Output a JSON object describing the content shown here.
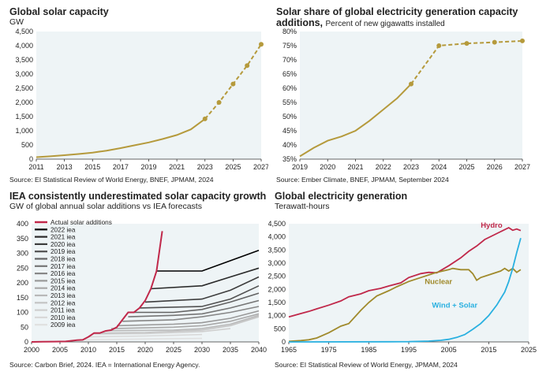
{
  "chart_data": [
    {
      "type": "line",
      "title": "Global solar capacity",
      "subtitle": "GW",
      "source": "Source: EI Statistical Review of World Energy, BNEF, JPMAM, 2024",
      "xlim": [
        2011,
        2027
      ],
      "ylim": [
        0,
        4500
      ],
      "x_ticks": [
        "2011",
        "2013",
        "2015",
        "2017",
        "2019",
        "2021",
        "2023",
        "2025",
        "2027"
      ],
      "y_ticks": [
        "0",
        "500",
        "1,000",
        "1,500",
        "2,000",
        "2,500",
        "3,000",
        "3,500",
        "4,000",
        "4,500"
      ],
      "series": [
        {
          "style": "solid",
          "color": "#b59a3c",
          "x": [
            2011,
            2012,
            2013,
            2014,
            2015,
            2016,
            2017,
            2018,
            2019,
            2020,
            2021,
            2022,
            2023
          ],
          "y": [
            70,
            100,
            140,
            180,
            230,
            300,
            390,
            490,
            590,
            710,
            850,
            1050,
            1420
          ]
        },
        {
          "style": "dashed-markers",
          "color": "#b59a3c",
          "x": [
            2023,
            2024,
            2025,
            2026,
            2027
          ],
          "y": [
            1420,
            2000,
            2650,
            3300,
            4050
          ]
        }
      ],
      "grid": false
    },
    {
      "type": "line",
      "title": "Solar share of global electricity generation capacity",
      "title2": "additions,",
      "subtitle": "Percent of new gigawatts installed",
      "source": "Source: Ember Climate, BNEF, JPMAM, September 2024",
      "xlim": [
        2019,
        2027
      ],
      "ylim": [
        35,
        80
      ],
      "x_ticks": [
        "2019",
        "2020",
        "2021",
        "2022",
        "2023",
        "2024",
        "2025",
        "2026",
        "2027"
      ],
      "y_ticks": [
        "35%",
        "40%",
        "45%",
        "50%",
        "55%",
        "60%",
        "65%",
        "70%",
        "75%",
        "80%"
      ],
      "series": [
        {
          "style": "solid",
          "color": "#b59a3c",
          "x": [
            2019,
            2019.5,
            2020,
            2020.5,
            2021,
            2021.5,
            2022,
            2022.5,
            2023
          ],
          "y": [
            36,
            39,
            41.5,
            43,
            45,
            48.5,
            52.5,
            56.5,
            61.5
          ]
        },
        {
          "style": "dashed-markers",
          "color": "#b59a3c",
          "x": [
            2023,
            2024,
            2025,
            2026,
            2027
          ],
          "y": [
            61.5,
            75,
            75.8,
            76.2,
            76.7
          ]
        }
      ],
      "grid": false
    },
    {
      "type": "line",
      "title": "IEA consistently underestimated solar capacity growth",
      "subtitle": "GW of global annual solar additions vs IEA forecasts",
      "source": "Source: Carbon Brief, 2024. IEA = International Energy Agency.",
      "xlim": [
        2000,
        2040
      ],
      "ylim": [
        0,
        400
      ],
      "x_ticks": [
        "2000",
        "2005",
        "2010",
        "2015",
        "2020",
        "2025",
        "2030",
        "2035",
        "2040"
      ],
      "y_ticks": [
        "0",
        "50",
        "100",
        "150",
        "200",
        "250",
        "300",
        "350",
        "400"
      ],
      "legend": [
        {
          "name": "Actual solar additions",
          "color": "#c0284a"
        },
        {
          "name": "2022 iea",
          "color": "#000000"
        },
        {
          "name": "2021 iea",
          "color": "#2a2a2a"
        },
        {
          "name": "2020 iea",
          "color": "#3d3d3d"
        },
        {
          "name": "2019 iea",
          "color": "#515151"
        },
        {
          "name": "2018 iea",
          "color": "#636363"
        },
        {
          "name": "2017 iea",
          "color": "#757575"
        },
        {
          "name": "2016 iea",
          "color": "#878787"
        },
        {
          "name": "2015 iea",
          "color": "#999999"
        },
        {
          "name": "2014 iea",
          "color": "#a9a9a9"
        },
        {
          "name": "2013 iea",
          "color": "#b8b8b8"
        },
        {
          "name": "2012 iea",
          "color": "#c4c4c4"
        },
        {
          "name": "2011 iea",
          "color": "#cfcfcf"
        },
        {
          "name": "2010 iea",
          "color": "#d8d8d8"
        },
        {
          "name": "2009 iea",
          "color": "#e0e0e0"
        }
      ],
      "actual": {
        "x": [
          2000,
          2002,
          2004,
          2006,
          2008,
          2009,
          2010,
          2011,
          2012,
          2013,
          2014,
          2015,
          2016,
          2017,
          2018,
          2019,
          2020,
          2021,
          2022,
          2023
        ],
        "y": [
          0,
          0.5,
          1,
          1.5,
          6,
          7,
          17,
          30,
          30,
          37,
          40,
          50,
          75,
          100,
          100,
          115,
          140,
          180,
          240,
          375
        ]
      },
      "forecasts": [
        {
          "name": "2022 iea",
          "x": [
            2022,
            2030,
            2035,
            2040
          ],
          "y": [
            240,
            240,
            275,
            310
          ]
        },
        {
          "name": "2021 iea",
          "x": [
            2021,
            2030,
            2035,
            2040
          ],
          "y": [
            180,
            190,
            220,
            250
          ]
        },
        {
          "name": "2020 iea",
          "x": [
            2020,
            2030,
            2035,
            2040
          ],
          "y": [
            135,
            145,
            175,
            220
          ]
        },
        {
          "name": "2019 iea",
          "x": [
            2019,
            2030,
            2035,
            2040
          ],
          "y": [
            115,
            120,
            145,
            190
          ]
        },
        {
          "name": "2018 iea",
          "x": [
            2018,
            2025,
            2030,
            2035,
            2040
          ],
          "y": [
            100,
            100,
            110,
            135,
            165
          ]
        },
        {
          "name": "2017 iea",
          "x": [
            2017,
            2025,
            2030,
            2035,
            2040
          ],
          "y": [
            85,
            90,
            95,
            115,
            140
          ]
        },
        {
          "name": "2016 iea",
          "x": [
            2016,
            2025,
            2030,
            2035,
            2040
          ],
          "y": [
            70,
            75,
            85,
            100,
            120
          ]
        },
        {
          "name": "2015 iea",
          "x": [
            2015,
            2025,
            2030,
            2035,
            2040
          ],
          "y": [
            55,
            60,
            65,
            80,
            105
          ]
        },
        {
          "name": "2014 iea",
          "x": [
            2014,
            2025,
            2030,
            2035,
            2040
          ],
          "y": [
            45,
            50,
            55,
            70,
            95
          ]
        },
        {
          "name": "2013 iea",
          "x": [
            2013,
            2025,
            2030,
            2035,
            2040
          ],
          "y": [
            38,
            40,
            45,
            60,
            90
          ]
        },
        {
          "name": "2012 iea",
          "x": [
            2012,
            2020,
            2030,
            2035,
            2040
          ],
          "y": [
            30,
            32,
            40,
            55,
            85
          ]
        },
        {
          "name": "2011 iea",
          "x": [
            2011,
            2020,
            2030,
            2035
          ],
          "y": [
            27,
            28,
            35,
            45
          ]
        },
        {
          "name": "2010 iea",
          "x": [
            2010,
            2020,
            2030
          ],
          "y": [
            17,
            20,
            25
          ]
        },
        {
          "name": "2009 iea",
          "x": [
            2009,
            2020,
            2030
          ],
          "y": [
            7,
            10,
            12
          ]
        }
      ]
    },
    {
      "type": "line",
      "title": "Global electricity generation",
      "subtitle": "Terawatt-hours",
      "source": "Source: EI Statistical Review of World Energy, JPMAM, 2024",
      "xlim": [
        1965,
        2025
      ],
      "ylim": [
        0,
        4500
      ],
      "x_ticks": [
        "1965",
        "1975",
        "1985",
        "1995",
        "2005",
        "2015",
        "2025"
      ],
      "y_ticks": [
        "0",
        "500",
        "1,000",
        "1,500",
        "2,000",
        "2,500",
        "3,000",
        "3,500",
        "4,000",
        "4,500"
      ],
      "series": [
        {
          "name": "Hydro",
          "color": "#c0284a",
          "x": [
            1965,
            1968,
            1970,
            1972,
            1975,
            1978,
            1980,
            1983,
            1985,
            1988,
            1990,
            1993,
            1995,
            1998,
            2000,
            2002,
            2005,
            2008,
            2010,
            2012,
            2014,
            2016,
            2018,
            2020,
            2021,
            2022,
            2023
          ],
          "y": [
            950,
            1080,
            1160,
            1260,
            1400,
            1560,
            1720,
            1830,
            1950,
            2040,
            2130,
            2250,
            2450,
            2600,
            2650,
            2630,
            2900,
            3200,
            3450,
            3650,
            3900,
            4050,
            4200,
            4350,
            4250,
            4300,
            4240
          ]
        },
        {
          "name": "Nuclear",
          "color": "#a08a2c",
          "x": [
            1965,
            1968,
            1970,
            1972,
            1975,
            1978,
            1980,
            1983,
            1985,
            1987,
            1990,
            1992,
            1995,
            1998,
            2000,
            2002,
            2005,
            2006,
            2008,
            2010,
            2011,
            2012,
            2013,
            2015,
            2018,
            2019,
            2020,
            2021,
            2022,
            2023
          ],
          "y": [
            20,
            50,
            80,
            150,
            350,
            600,
            700,
            1200,
            1500,
            1750,
            1950,
            2100,
            2300,
            2450,
            2550,
            2650,
            2750,
            2800,
            2750,
            2750,
            2600,
            2350,
            2450,
            2550,
            2700,
            2800,
            2700,
            2800,
            2650,
            2750
          ]
        },
        {
          "name": "Wind + Solar",
          "color": "#29b0e0",
          "x": [
            1965,
            1990,
            1995,
            2000,
            2003,
            2005,
            2007,
            2009,
            2011,
            2013,
            2015,
            2017,
            2019,
            2020,
            2021,
            2022,
            2023
          ],
          "y": [
            0,
            5,
            10,
            30,
            60,
            100,
            170,
            280,
            480,
            700,
            1000,
            1400,
            1900,
            2300,
            2800,
            3400,
            3950
          ]
        }
      ]
    }
  ]
}
